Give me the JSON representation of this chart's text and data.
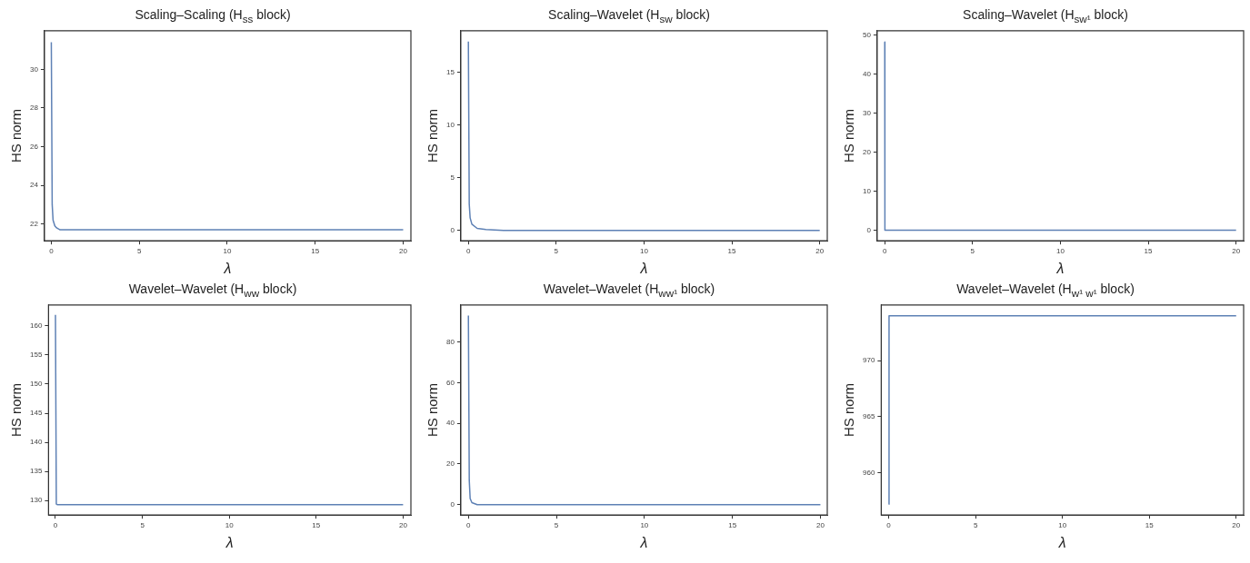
{
  "chart_data": [
    {
      "type": "line",
      "title": "Scaling–Scaling (H$_{ss}$ block)",
      "xlabel": "λ",
      "ylabel": "HS norm",
      "x": [
        0,
        0.05,
        0.1,
        0.2,
        0.3,
        0.5,
        1,
        20
      ],
      "series": [
        {
          "color": "#5e81b5",
          "values": [
            31.4,
            23,
            22.2,
            21.9,
            21.8,
            21.7,
            21.7,
            21.7
          ]
        }
      ],
      "xlim": [
        -0.39,
        20.44
      ],
      "ylim": [
        21.13,
        32
      ],
      "xticks": [
        0,
        5,
        10,
        15,
        20
      ],
      "yticks": [
        22,
        24,
        26,
        28,
        30
      ],
      "marker": "none",
      "line_style": "solid"
    },
    {
      "type": "line",
      "title": "Scaling–Wavelet (H$_{sw}$ block)",
      "xlabel": "λ",
      "ylabel": "HS norm",
      "x": [
        0,
        0.05,
        0.1,
        0.2,
        0.5,
        1,
        2,
        20
      ],
      "series": [
        {
          "color": "#5e81b5",
          "values": [
            17.9,
            2.5,
            1.2,
            0.6,
            0.2,
            0.1,
            0,
            0
          ]
        }
      ],
      "xlim": [
        -0.43,
        20.43
      ],
      "ylim": [
        -0.98,
        18.93
      ],
      "xticks": [
        0,
        5,
        10,
        15,
        20
      ],
      "yticks": [
        0,
        5,
        10,
        15
      ],
      "marker": "none",
      "line_style": "solid"
    },
    {
      "type": "line",
      "title": "Scaling–Wavelet (H$_{sw¹}$ block)",
      "xlabel": "λ",
      "ylabel": "HS norm",
      "x": [
        0,
        0.01,
        20
      ],
      "series": [
        {
          "color": "#5e81b5",
          "values": [
            48.3,
            0,
            0
          ]
        }
      ],
      "xlim": [
        -0.43,
        20.43
      ],
      "ylim": [
        -2.7,
        51.2
      ],
      "xticks": [
        0,
        5,
        10,
        15,
        20
      ],
      "yticks": [
        0,
        10,
        20,
        30,
        40,
        50
      ],
      "marker": "none",
      "line_style": "solid"
    },
    {
      "type": "line",
      "title": "Wavelet–Wavelet (H$_{ww}$ block)",
      "xlabel": "λ",
      "ylabel": "HS norm",
      "x": [
        0,
        0.05,
        0.1,
        20
      ],
      "series": [
        {
          "color": "#5e81b5",
          "values": [
            161.9,
            129.4,
            129.3,
            129.3
          ]
        }
      ],
      "xlim": [
        -0.4,
        20.45
      ],
      "ylim": [
        127.5,
        163.6
      ],
      "xticks": [
        0,
        5,
        10,
        15,
        20
      ],
      "yticks": [
        130,
        135,
        140,
        145,
        150,
        155,
        160
      ],
      "marker": "none",
      "line_style": "solid"
    },
    {
      "type": "line",
      "title": "Wavelet–Wavelet (H$_{ww¹}$ block)",
      "xlabel": "λ",
      "ylabel": "HS norm",
      "x": [
        0,
        0.05,
        0.1,
        0.2,
        0.5,
        20
      ],
      "series": [
        {
          "color": "#5e81b5",
          "values": [
            93,
            12,
            3,
            1,
            0,
            0
          ]
        }
      ],
      "xlim": [
        -0.43,
        20.39
      ],
      "ylim": [
        -5.1,
        98.2
      ],
      "xticks": [
        0,
        5,
        10,
        15,
        20
      ],
      "yticks": [
        0,
        20,
        40,
        60,
        80
      ],
      "marker": "none",
      "line_style": "solid"
    },
    {
      "type": "line",
      "title": "Wavelet–Wavelet (H$_{w¹ w¹}$ block)",
      "xlabel": "λ",
      "ylabel": "HS norm",
      "x": [
        0,
        0.02,
        20
      ],
      "series": [
        {
          "color": "#5e81b5",
          "values": [
            957.2,
            974,
            974
          ]
        }
      ],
      "xlim": [
        -0.43,
        20.43
      ],
      "ylim": [
        956.24,
        974.96
      ],
      "xticks": [
        0,
        5,
        10,
        15,
        20
      ],
      "yticks": [
        960,
        965,
        970
      ],
      "marker": "none",
      "line_style": "solid"
    }
  ]
}
